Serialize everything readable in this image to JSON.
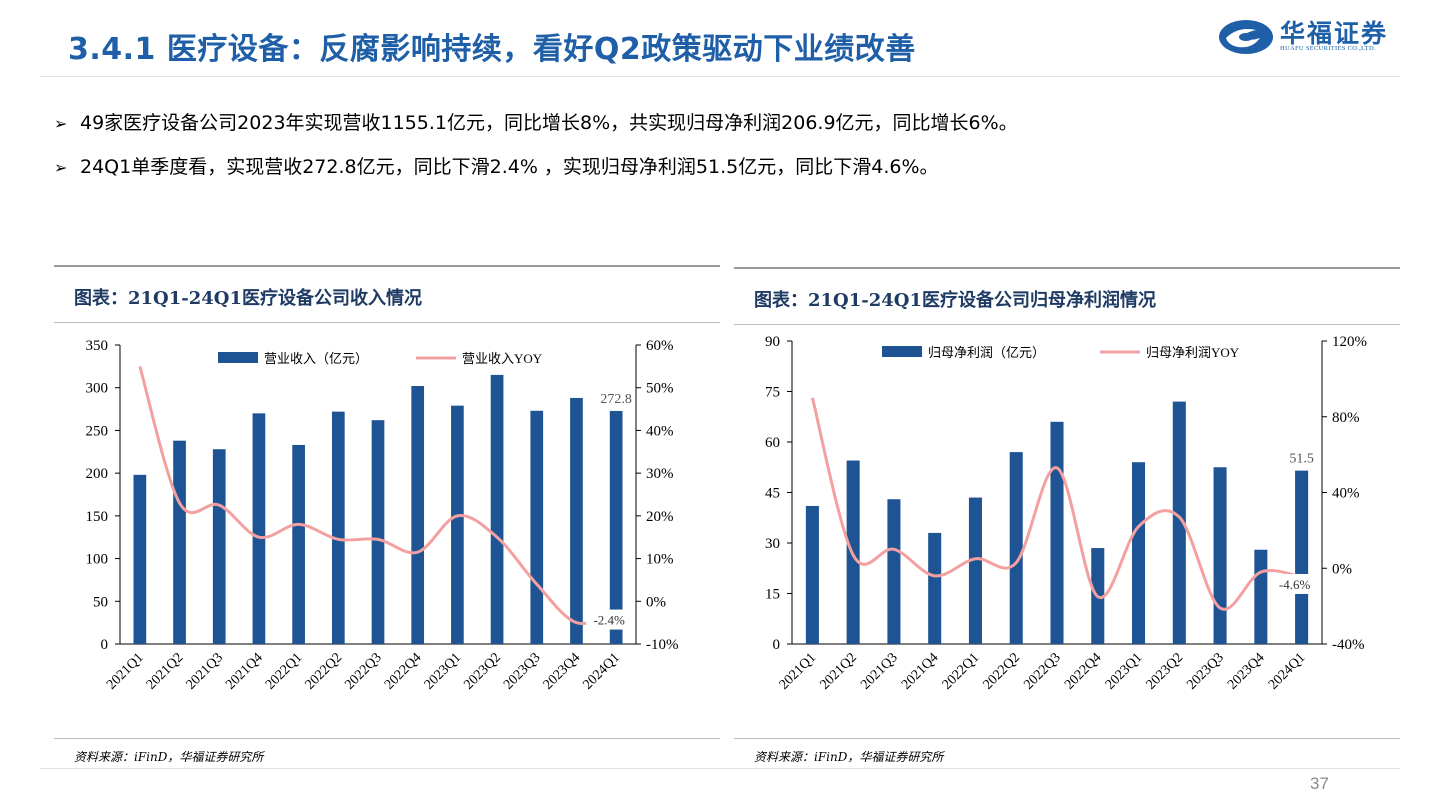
{
  "header": {
    "title": "3.4.1 医疗设备：反腐影响持续，看好Q2政策驱动下业绩改善",
    "logo_cn": "华福证券",
    "logo_en": "HUAFU SECURITIES CO.,LTD."
  },
  "bullets": [
    {
      "arrow": "➢",
      "text": "49家医疗设备公司2023年实现营收1155.1亿元，同比增长8%，共实现归母净利润206.9亿元，同比增长6%。"
    },
    {
      "arrow": "➢",
      "text": "24Q1单季度看，实现营收272.8亿元，同比下滑2.4% ，实现归母净利润51.5亿元，同比下滑4.6%。"
    }
  ],
  "panels": [
    {
      "title": "图表：21Q1-24Q1医疗设备公司收入情况",
      "source": "资料来源：iFinD，华福证券研究所"
    },
    {
      "title": "图表：21Q1-24Q1医疗设备公司归母净利润情况",
      "source": "资料来源：iFinD，华福证券研究所"
    }
  ],
  "page_number": "37",
  "colors": {
    "bar": "#1f5494",
    "line": "#f4a0a0",
    "title": "#1f5fa8"
  },
  "chart_data": [
    {
      "type": "bar",
      "categories": [
        "2021Q1",
        "2021Q2",
        "2021Q3",
        "2021Q4",
        "2022Q1",
        "2022Q2",
        "2022Q3",
        "2022Q4",
        "2023Q1",
        "2023Q2",
        "2023Q3",
        "2023Q4",
        "2024Q1"
      ],
      "series": [
        {
          "name": "营业收入（亿元）",
          "type": "bar",
          "axis": "left",
          "values": [
            198,
            238,
            228,
            270,
            233,
            272,
            262,
            302,
            279,
            315,
            273,
            288,
            272.8
          ]
        },
        {
          "name": "营业收入YOY",
          "type": "line",
          "axis": "right",
          "values": [
            55,
            23,
            22.5,
            15,
            18,
            14.5,
            14.5,
            11.5,
            20,
            15,
            4,
            -5,
            -2.4
          ]
        }
      ],
      "ylim": [
        0,
        350
      ],
      "yticks": [
        "0",
        "50",
        "100",
        "150",
        "200",
        "250",
        "300",
        "350"
      ],
      "y2lim": [
        -10,
        60
      ],
      "y2ticks": [
        "-10%",
        "0%",
        "10%",
        "20%",
        "30%",
        "40%",
        "50%",
        "60%"
      ],
      "annotations": [
        "272.8",
        "-2.4%"
      ],
      "legend": "top"
    },
    {
      "type": "bar",
      "categories": [
        "2021Q1",
        "2021Q2",
        "2021Q3",
        "2021Q4",
        "2022Q1",
        "2022Q2",
        "2022Q3",
        "2022Q4",
        "2023Q1",
        "2023Q2",
        "2023Q3",
        "2023Q4",
        "2024Q1"
      ],
      "series": [
        {
          "name": "归母净利润（亿元）",
          "type": "bar",
          "axis": "left",
          "values": [
            41,
            54.5,
            43,
            33,
            43.5,
            57,
            66,
            28.5,
            54,
            72,
            52.5,
            28,
            51.5
          ]
        },
        {
          "name": "归母净利润YOY",
          "type": "line",
          "axis": "right",
          "values": [
            90,
            7,
            10,
            -4,
            5,
            3,
            53,
            -15,
            22,
            27,
            -21,
            -2,
            -4.6
          ]
        }
      ],
      "ylim": [
        0,
        90
      ],
      "yticks": [
        "0",
        "15",
        "30",
        "45",
        "60",
        "75",
        "90"
      ],
      "y2lim": [
        -40,
        120
      ],
      "y2ticks": [
        "-40%",
        "0%",
        "40%",
        "80%",
        "120%"
      ],
      "annotations": [
        "51.5",
        "-4.6%"
      ],
      "legend": "top"
    }
  ]
}
